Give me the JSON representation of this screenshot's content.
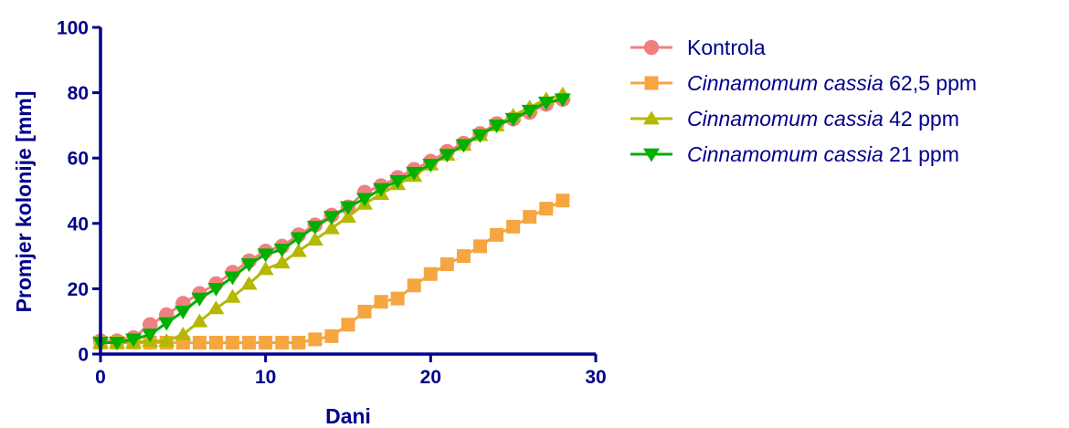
{
  "colors": {
    "axis": "#00008B",
    "kontrola": "#F08080",
    "c625": "#F5A640",
    "c42": "#B5B800",
    "c21": "#00B000"
  },
  "chart_data": {
    "type": "line",
    "xlabel": "Dani",
    "ylabel": "Promjer kolonije [mm]",
    "xlim": [
      0,
      30
    ],
    "ylim": [
      0,
      100
    ],
    "x_ticks": [
      0,
      10,
      20,
      30
    ],
    "y_ticks": [
      0,
      20,
      40,
      60,
      80,
      100
    ],
    "x_tick_labels": [
      "0",
      "10",
      "20",
      "30"
    ],
    "y_tick_labels": [
      "0",
      "20",
      "40",
      "60",
      "80",
      "100"
    ],
    "legend_position": "right",
    "grid": false,
    "series": [
      {
        "key": "kontrola",
        "name": "Kontrola",
        "name_italic": "",
        "name_suffix": "",
        "marker": "circle",
        "color": "#F08080",
        "x": [
          0,
          1,
          2,
          3,
          4,
          5,
          6,
          7,
          8,
          9,
          10,
          11,
          12,
          13,
          14,
          15,
          16,
          17,
          18,
          19,
          20,
          21,
          22,
          23,
          24,
          25,
          26,
          27,
          28
        ],
        "y": [
          4,
          4,
          5,
          9,
          12,
          15.5,
          18.5,
          21.5,
          25,
          28.5,
          31.5,
          33,
          36.5,
          39.5,
          42.5,
          45,
          49.5,
          51.5,
          54,
          56.5,
          59,
          62,
          64.5,
          67.5,
          70.5,
          72,
          74,
          76.5,
          78
        ]
      },
      {
        "key": "c625",
        "name": "",
        "name_italic": "Cinnamomum cassia",
        "name_suffix": " 62,5 ppm",
        "marker": "square",
        "color": "#F5A640",
        "x": [
          0,
          1,
          2,
          3,
          4,
          5,
          6,
          7,
          8,
          9,
          10,
          11,
          12,
          13,
          14,
          15,
          16,
          17,
          18,
          19,
          20,
          21,
          22,
          23,
          24,
          25,
          26,
          27,
          28
        ],
        "y": [
          3.5,
          3.5,
          3.5,
          3.5,
          3.5,
          3.5,
          3.5,
          3.5,
          3.5,
          3.5,
          3.5,
          3.5,
          3.5,
          4.5,
          5.5,
          9,
          13,
          16,
          17,
          21,
          24.5,
          27.5,
          30,
          33,
          36.5,
          39,
          42,
          44.5,
          47
        ]
      },
      {
        "key": "c42",
        "name": "",
        "name_italic": "Cinnamomum cassia",
        "name_suffix": " 42 ppm",
        "marker": "triangle-up",
        "color": "#B5B800",
        "x": [
          0,
          1,
          2,
          3,
          4,
          5,
          6,
          7,
          8,
          9,
          10,
          11,
          12,
          13,
          14,
          15,
          16,
          17,
          18,
          19,
          20,
          21,
          22,
          23,
          24,
          25,
          26,
          27,
          28
        ],
        "y": [
          3.5,
          3.5,
          3.5,
          4,
          4,
          6,
          10,
          14,
          17.5,
          21.5,
          26,
          28,
          31.5,
          35,
          38.5,
          42,
          46,
          49,
          52,
          54.5,
          58,
          61,
          64,
          67,
          70,
          73,
          75.5,
          78,
          79.5
        ]
      },
      {
        "key": "c21",
        "name": "",
        "name_italic": "Cinnamomum cassia",
        "name_suffix": " 21 ppm",
        "marker": "triangle-down",
        "color": "#00B000",
        "x": [
          0,
          1,
          2,
          3,
          4,
          5,
          6,
          7,
          8,
          9,
          10,
          11,
          12,
          13,
          14,
          15,
          16,
          17,
          18,
          19,
          20,
          21,
          22,
          23,
          24,
          25,
          26,
          27,
          28
        ],
        "y": [
          3.5,
          3.5,
          4.5,
          6,
          9.5,
          13,
          17,
          20,
          23.5,
          27.5,
          30.5,
          32,
          35.5,
          39,
          42,
          45,
          47.5,
          50.5,
          53,
          55.5,
          58,
          61,
          64,
          67,
          70,
          72,
          74.5,
          77,
          78
        ]
      }
    ]
  }
}
